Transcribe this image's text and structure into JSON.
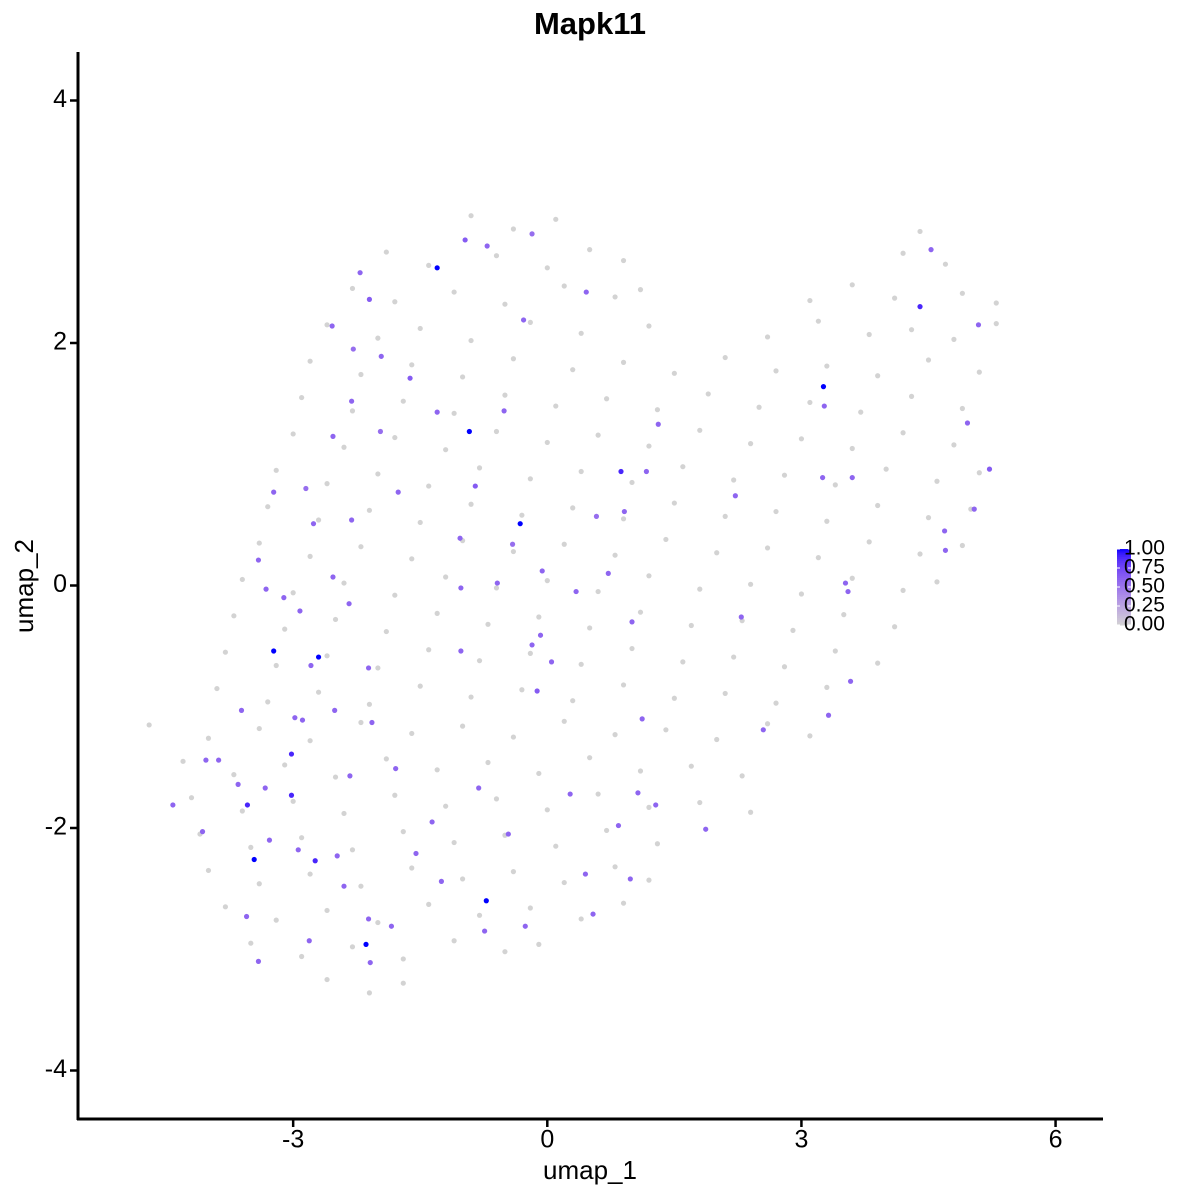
{
  "chart_data": {
    "type": "scatter",
    "title": "Mapk11",
    "x_label": "umap_1",
    "y_label": "umap_2",
    "xlim": [
      -5.54,
      6.56
    ],
    "ylim": [
      -4.4,
      4.4
    ],
    "xticks": [
      -3,
      0,
      3,
      6
    ],
    "yticks": [
      -4,
      -2,
      0,
      2,
      4
    ],
    "low_color": "#d3d3d3",
    "high_color": "#0000ff",
    "clim": [
      0,
      1
    ],
    "colorbar_ticks": [
      {
        "value": 0,
        "label": "0.00"
      },
      {
        "value": 0.25,
        "label": "0.25"
      },
      {
        "value": 0.5,
        "label": "0.50"
      },
      {
        "value": 0.75,
        "label": "0.75"
      },
      {
        "value": 1,
        "label": "1.00"
      }
    ],
    "legend": "right",
    "x": [
      -0.9,
      -0.4,
      0.1,
      4.4,
      -1.9,
      -1.4,
      -0.6,
      0.0,
      0.5,
      0.9,
      4.2,
      4.7,
      -2.3,
      -1.8,
      -1.1,
      -0.5,
      0.2,
      0.8,
      1.1,
      3.1,
      3.6,
      4.1,
      4.9,
      5.3,
      -2.6,
      -2.0,
      -1.5,
      -0.9,
      -0.2,
      0.4,
      1.2,
      2.6,
      3.2,
      3.8,
      4.3,
      4.8,
      5.3,
      -2.8,
      -2.2,
      -1.6,
      -1.0,
      -0.4,
      0.3,
      0.9,
      1.5,
      2.1,
      2.7,
      3.3,
      3.9,
      4.5,
      5.1,
      -2.9,
      -2.3,
      -1.7,
      -1.1,
      -0.5,
      0.1,
      0.7,
      1.3,
      1.9,
      2.5,
      3.1,
      3.7,
      4.3,
      4.9,
      -3.0,
      -2.4,
      -1.8,
      -1.2,
      -0.6,
      0.0,
      0.6,
      1.2,
      1.8,
      2.4,
      3.0,
      3.6,
      4.2,
      4.8,
      -3.2,
      -2.6,
      -2.0,
      -1.4,
      -0.8,
      -0.2,
      0.4,
      1.0,
      1.6,
      2.2,
      2.8,
      3.4,
      4.0,
      4.6,
      5.1,
      -3.3,
      -2.7,
      -2.1,
      -1.5,
      -0.9,
      -0.3,
      0.3,
      0.9,
      1.5,
      2.1,
      2.7,
      3.3,
      3.9,
      4.5,
      5.0,
      -3.4,
      -2.8,
      -2.2,
      -1.6,
      -1.0,
      -0.4,
      0.2,
      0.8,
      1.4,
      2.0,
      2.6,
      3.2,
      3.8,
      4.4,
      4.9,
      -3.6,
      -3.0,
      -2.4,
      -1.8,
      -1.2,
      -0.6,
      0.0,
      0.6,
      1.2,
      1.8,
      2.4,
      3.0,
      3.6,
      4.2,
      4.6,
      -3.7,
      -3.1,
      -2.5,
      -1.9,
      -1.3,
      -0.7,
      -0.1,
      0.5,
      1.1,
      1.7,
      2.3,
      2.9,
      3.5,
      4.1,
      -3.8,
      -3.2,
      -2.6,
      -2.0,
      -1.4,
      -0.8,
      -0.2,
      0.4,
      1.0,
      1.6,
      2.2,
      2.8,
      3.4,
      3.9,
      -3.9,
      -3.3,
      -2.7,
      -2.1,
      -1.5,
      -0.9,
      -0.3,
      0.3,
      0.9,
      1.5,
      2.1,
      2.7,
      3.3,
      -4.7,
      -4.0,
      -3.4,
      -2.8,
      -2.2,
      -1.6,
      -1.0,
      -0.4,
      0.2,
      0.8,
      1.4,
      2.0,
      2.6,
      3.1,
      -4.3,
      -3.7,
      -3.1,
      -2.5,
      -1.9,
      -1.3,
      -0.7,
      -0.1,
      0.5,
      1.1,
      1.7,
      2.3,
      -4.2,
      -3.6,
      -3.0,
      -2.4,
      -1.8,
      -1.2,
      -0.6,
      0.0,
      0.6,
      1.2,
      1.8,
      2.4,
      -4.1,
      -3.5,
      -2.9,
      -2.3,
      -1.7,
      -1.1,
      -0.5,
      0.1,
      0.7,
      1.3,
      -4.0,
      -3.4,
      -2.8,
      -2.2,
      -1.6,
      -1.0,
      -0.4,
      0.2,
      0.8,
      1.2,
      -3.8,
      -3.2,
      -2.6,
      -2.0,
      -1.4,
      -0.8,
      -0.2,
      0.4,
      0.9,
      -3.5,
      -2.9,
      -2.3,
      -1.7,
      -1.1,
      -0.5,
      -0.1,
      -2.6,
      -2.1,
      -1.7,
      -2.21,
      -2.1,
      -2.54,
      -2.29,
      -1.96,
      -1.62,
      -2.31,
      -2.53,
      -1.97,
      -1.3,
      -0.51,
      -0.97,
      -0.71,
      -0.18,
      -0.28,
      0.46,
      -3.23,
      -2.85,
      -2.76,
      -2.31,
      -1.76,
      -0.85,
      -1.03,
      -0.41,
      -0.59,
      -1.02,
      0.34,
      0.72,
      0.58,
      0.91,
      1.17,
      1.31,
      2.22,
      3.27,
      3.25,
      3.6,
      4.53,
      5.09,
      4.96,
      5.22,
      4.69,
      4.7,
      5.04,
      3.52,
      3.55,
      2.29,
      3.58,
      3.32,
      2.55,
      1.87,
      1.28,
      1.12,
      1.0,
      0.05,
      -0.18,
      -0.12,
      -0.08,
      -1.02,
      -2.11,
      -2.51,
      -2.98,
      -2.89,
      -2.79,
      -3.41,
      -3.32,
      -3.11,
      -2.92,
      -2.53,
      -2.34,
      -3.61,
      -4.03,
      -3.88,
      -4.42,
      -3.65,
      -3.33,
      -3.28,
      -4.07,
      -3.55,
      -3.41,
      -2.94,
      -2.48,
      -2.33,
      -2.07,
      -1.79,
      -1.36,
      -1.55,
      -1.25,
      -0.81,
      -0.46,
      -0.26,
      -0.74,
      0.27,
      0.45,
      0.54,
      0.84,
      0.98,
      1.07,
      -2.11,
      -2.09,
      -2.4,
      -1.84,
      -2.81,
      -0.06,
      -1.3,
      -0.92,
      -0.32,
      0.87,
      3.26,
      4.4,
      -3.23,
      -2.7,
      -3.02,
      -3.02,
      -3.54,
      -3.46,
      -2.74,
      -0.72,
      -2.14
    ],
    "y": [
      3.05,
      2.94,
      3.02,
      2.92,
      2.75,
      2.64,
      2.72,
      2.62,
      2.77,
      2.68,
      2.74,
      2.65,
      2.45,
      2.34,
      2.42,
      2.32,
      2.47,
      2.38,
      2.44,
      2.35,
      2.48,
      2.37,
      2.41,
      2.33,
      2.15,
      2.04,
      2.12,
      2.02,
      2.17,
      2.08,
      2.14,
      2.05,
      2.18,
      2.07,
      2.11,
      2.03,
      2.16,
      1.85,
      1.74,
      1.82,
      1.72,
      1.87,
      1.78,
      1.84,
      1.75,
      1.88,
      1.77,
      1.81,
      1.73,
      1.86,
      1.76,
      1.55,
      1.44,
      1.52,
      1.42,
      1.57,
      1.48,
      1.54,
      1.45,
      1.58,
      1.47,
      1.51,
      1.43,
      1.56,
      1.46,
      1.25,
      1.14,
      1.22,
      1.12,
      1.27,
      1.18,
      1.24,
      1.15,
      1.28,
      1.17,
      1.21,
      1.13,
      1.26,
      1.16,
      0.95,
      0.84,
      0.92,
      0.82,
      0.97,
      0.88,
      0.94,
      0.85,
      0.98,
      0.87,
      0.91,
      0.83,
      0.96,
      0.86,
      0.93,
      0.65,
      0.54,
      0.62,
      0.52,
      0.67,
      0.58,
      0.64,
      0.55,
      0.68,
      0.57,
      0.61,
      0.53,
      0.66,
      0.56,
      0.63,
      0.35,
      0.24,
      0.32,
      0.22,
      0.37,
      0.28,
      0.34,
      0.25,
      0.38,
      0.27,
      0.31,
      0.23,
      0.36,
      0.26,
      0.33,
      0.05,
      -0.06,
      0.02,
      -0.08,
      0.07,
      -0.02,
      0.04,
      -0.05,
      0.08,
      -0.03,
      0.01,
      -0.07,
      0.06,
      -0.04,
      0.03,
      -0.25,
      -0.36,
      -0.28,
      -0.38,
      -0.23,
      -0.32,
      -0.26,
      -0.35,
      -0.22,
      -0.33,
      -0.29,
      -0.37,
      -0.24,
      -0.34,
      -0.55,
      -0.66,
      -0.58,
      -0.68,
      -0.53,
      -0.62,
      -0.56,
      -0.65,
      -0.52,
      -0.63,
      -0.59,
      -0.67,
      -0.54,
      -0.64,
      -0.85,
      -0.96,
      -0.88,
      -0.98,
      -0.83,
      -0.92,
      -0.86,
      -0.95,
      -0.82,
      -0.93,
      -0.89,
      -0.97,
      -0.84,
      -1.15,
      -1.26,
      -1.18,
      -1.28,
      -1.13,
      -1.22,
      -1.16,
      -1.25,
      -1.12,
      -1.23,
      -1.19,
      -1.27,
      -1.14,
      -1.24,
      -1.45,
      -1.56,
      -1.48,
      -1.58,
      -1.43,
      -1.52,
      -1.46,
      -1.55,
      -1.42,
      -1.53,
      -1.49,
      -1.57,
      -1.75,
      -1.86,
      -1.78,
      -1.88,
      -1.73,
      -1.82,
      -1.76,
      -1.85,
      -1.72,
      -1.83,
      -1.79,
      -1.87,
      -2.05,
      -2.16,
      -2.08,
      -2.18,
      -2.03,
      -2.12,
      -2.06,
      -2.15,
      -2.02,
      -2.13,
      -2.35,
      -2.46,
      -2.38,
      -2.48,
      -2.33,
      -2.42,
      -2.36,
      -2.45,
      -2.32,
      -2.43,
      -2.65,
      -2.76,
      -2.68,
      -2.78,
      -2.63,
      -2.72,
      -2.66,
      -2.75,
      -2.62,
      -2.95,
      -3.06,
      -2.98,
      -3.08,
      -2.93,
      -3.02,
      -2.96,
      -3.25,
      -3.36,
      -3.28,
      2.58,
      2.36,
      2.14,
      1.95,
      1.89,
      1.71,
      1.52,
      1.23,
      1.27,
      1.43,
      1.44,
      2.85,
      2.8,
      2.9,
      2.19,
      2.42,
      0.77,
      0.8,
      0.51,
      0.54,
      0.77,
      0.82,
      0.39,
      0.34,
      0.02,
      -0.02,
      -0.05,
      0.1,
      0.57,
      0.61,
      0.94,
      1.33,
      0.74,
      1.48,
      0.89,
      0.89,
      2.77,
      2.15,
      1.34,
      0.96,
      0.45,
      0.29,
      0.63,
      0.02,
      -0.05,
      -0.26,
      -0.79,
      -1.07,
      -1.19,
      -2.01,
      -1.81,
      -1.1,
      -0.3,
      -0.63,
      -0.49,
      -0.87,
      -0.41,
      -0.54,
      -0.68,
      -1.03,
      -1.09,
      -1.11,
      -0.66,
      0.21,
      -0.03,
      -0.1,
      -0.21,
      0.07,
      -0.15,
      -1.03,
      -1.44,
      -1.44,
      -1.81,
      -1.64,
      -1.67,
      -2.1,
      -2.03,
      -2.73,
      -3.1,
      -2.18,
      -2.23,
      -1.57,
      -1.13,
      -1.51,
      -1.95,
      -2.21,
      -2.44,
      -1.67,
      -2.05,
      -2.81,
      -2.85,
      -1.72,
      -2.38,
      -2.71,
      -1.98,
      -2.42,
      -1.71,
      -2.75,
      -3.11,
      -2.48,
      -2.81,
      -2.93,
      0.12,
      2.62,
      1.27,
      0.51,
      0.94,
      1.64,
      2.3,
      -0.54,
      -0.59,
      -1.39,
      -1.73,
      -1.81,
      -2.26,
      -2.27,
      -2.6,
      -2.96
    ],
    "values": [
      0,
      0,
      0,
      0,
      0,
      0,
      0,
      0,
      0,
      0,
      0,
      0,
      0,
      0,
      0,
      0,
      0,
      0,
      0,
      0,
      0,
      0,
      0,
      0,
      0,
      0,
      0,
      0,
      0,
      0,
      0,
      0,
      0,
      0,
      0,
      0,
      0,
      0,
      0,
      0,
      0,
      0,
      0,
      0,
      0,
      0,
      0,
      0,
      0,
      0,
      0,
      0,
      0,
      0,
      0,
      0,
      0,
      0,
      0,
      0,
      0,
      0,
      0,
      0,
      0,
      0,
      0,
      0,
      0,
      0,
      0,
      0,
      0,
      0,
      0,
      0,
      0,
      0,
      0,
      0,
      0,
      0,
      0,
      0,
      0,
      0,
      0,
      0,
      0,
      0,
      0,
      0,
      0,
      0,
      0,
      0,
      0,
      0,
      0,
      0,
      0,
      0,
      0,
      0,
      0,
      0,
      0,
      0,
      0,
      0,
      0,
      0,
      0,
      0,
      0,
      0,
      0,
      0,
      0,
      0,
      0,
      0,
      0,
      0,
      0,
      0,
      0,
      0,
      0,
      0,
      0,
      0,
      0,
      0,
      0,
      0,
      0,
      0,
      0,
      0,
      0,
      0,
      0,
      0,
      0,
      0,
      0,
      0,
      0,
      0,
      0,
      0,
      0,
      0,
      0,
      0,
      0,
      0,
      0,
      0,
      0,
      0,
      0,
      0,
      0,
      0,
      0,
      0,
      0,
      0,
      0,
      0,
      0,
      0,
      0,
      0,
      0,
      0,
      0,
      0,
      0,
      0,
      0,
      0,
      0,
      0,
      0,
      0,
      0,
      0,
      0,
      0,
      0,
      0,
      0,
      0,
      0,
      0,
      0,
      0,
      0,
      0,
      0,
      0,
      0,
      0,
      0,
      0,
      0,
      0,
      0,
      0,
      0,
      0,
      0,
      0,
      0,
      0,
      0,
      0,
      0,
      0,
      0,
      0,
      0,
      0,
      0,
      0,
      0,
      0,
      0,
      0,
      0,
      0,
      0,
      0,
      0,
      0,
      0,
      0,
      0,
      0,
      0,
      0,
      0,
      0,
      0,
      0,
      0,
      0,
      0,
      0,
      0,
      0,
      0,
      0,
      0,
      0.6,
      0.65,
      0.6,
      0.55,
      0.6,
      0.65,
      0.6,
      0.6,
      0.55,
      0.6,
      0.6,
      0.65,
      0.6,
      0.55,
      0.6,
      0.6,
      0.6,
      0.55,
      0.6,
      0.6,
      0.6,
      0.65,
      0.6,
      0.55,
      0.6,
      0.6,
      0.6,
      0.6,
      0.55,
      0.6,
      0.6,
      0.6,
      0.6,
      0.6,
      0.6,
      0.6,
      0.6,
      0.6,
      0.6,
      0.65,
      0.6,
      0.6,
      0.6,
      0.6,
      0.6,
      0.6,
      0.6,
      0.6,
      0.6,
      0.6,
      0.6,
      0.6,
      0.6,
      0.6,
      0.6,
      0.65,
      0.6,
      0.6,
      0.6,
      0.6,
      0.6,
      0.6,
      0.6,
      0.6,
      0.6,
      0.6,
      0.6,
      0.6,
      0.6,
      0.6,
      0.6,
      0.6,
      0.6,
      0.6,
      0.6,
      0.6,
      0.6,
      0.6,
      0.6,
      0.6,
      0.6,
      0.6,
      0.6,
      0.6,
      0.6,
      0.6,
      0.6,
      0.6,
      0.6,
      0.6,
      0.6,
      0.6,
      0.6,
      0.6,
      0.6,
      0.6,
      0.6,
      0.6,
      0.6,
      0.6,
      0.6,
      0.6,
      0.6,
      1,
      1,
      1,
      0.9,
      1,
      0.9,
      1,
      1,
      0.9,
      0.9,
      0.9,
      1,
      0.9,
      1,
      1
    ]
  }
}
